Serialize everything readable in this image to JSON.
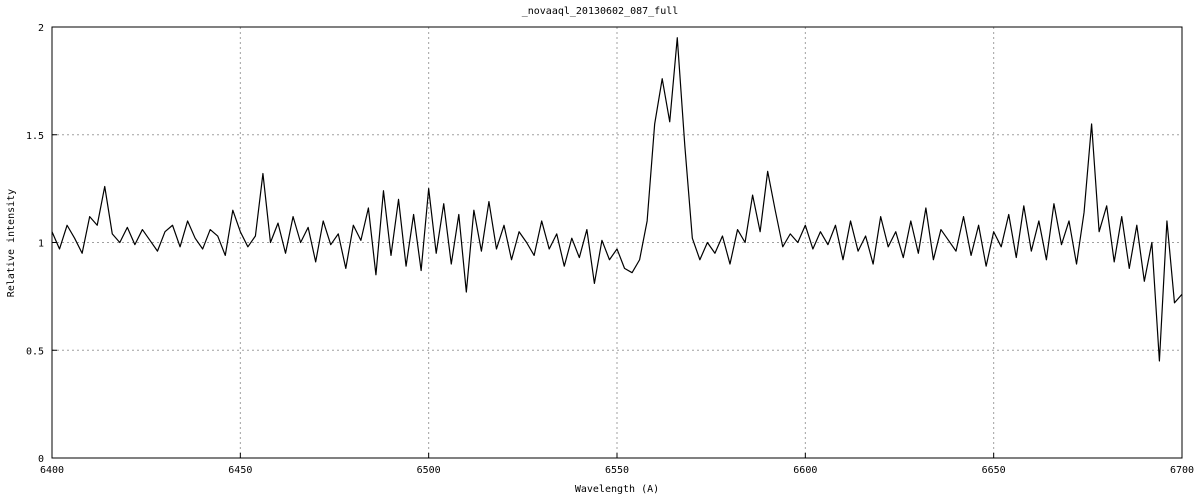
{
  "chart_data": {
    "type": "line",
    "title": "_novaaql_20130602_087_full",
    "x_label": "Wavelength (A)",
    "y_label": "Relative intensity",
    "color": "#000000",
    "grid": true,
    "xlim": [
      6400,
      6700
    ],
    "ylim": [
      0,
      2
    ],
    "xticks": [
      6400,
      6450,
      6500,
      6550,
      6600,
      6650,
      6700
    ],
    "yticks": [
      0,
      0.5,
      1,
      1.5,
      2
    ],
    "x": [
      6400,
      6402,
      6404,
      6406,
      6408,
      6410,
      6412,
      6414,
      6416,
      6418,
      6420,
      6422,
      6424,
      6426,
      6428,
      6430,
      6432,
      6434,
      6436,
      6438,
      6440,
      6442,
      6444,
      6446,
      6448,
      6450,
      6452,
      6454,
      6456,
      6458,
      6460,
      6462,
      6464,
      6466,
      6468,
      6470,
      6472,
      6474,
      6476,
      6478,
      6480,
      6482,
      6484,
      6486,
      6488,
      6490,
      6492,
      6494,
      6496,
      6498,
      6500,
      6502,
      6504,
      6506,
      6508,
      6510,
      6512,
      6514,
      6516,
      6518,
      6520,
      6522,
      6524,
      6526,
      6528,
      6530,
      6532,
      6534,
      6536,
      6538,
      6540,
      6542,
      6544,
      6546,
      6548,
      6550,
      6552,
      6554,
      6556,
      6558,
      6560,
      6562,
      6564,
      6566,
      6568,
      6570,
      6572,
      6574,
      6576,
      6578,
      6580,
      6582,
      6584,
      6586,
      6588,
      6590,
      6592,
      6594,
      6596,
      6598,
      6600,
      6602,
      6604,
      6606,
      6608,
      6610,
      6612,
      6614,
      6616,
      6618,
      6620,
      6622,
      6624,
      6626,
      6628,
      6630,
      6632,
      6634,
      6636,
      6638,
      6640,
      6642,
      6644,
      6646,
      6648,
      6650,
      6652,
      6654,
      6656,
      6658,
      6660,
      6662,
      6664,
      6666,
      6668,
      6670,
      6672,
      6674,
      6676,
      6678,
      6680,
      6682,
      6684,
      6686,
      6688,
      6690,
      6692,
      6694,
      6696,
      6698,
      6700
    ],
    "values": [
      1.05,
      0.97,
      1.08,
      1.02,
      0.95,
      1.12,
      1.08,
      1.26,
      1.04,
      1.0,
      1.07,
      0.99,
      1.06,
      1.01,
      0.96,
      1.05,
      1.08,
      0.98,
      1.1,
      1.02,
      0.97,
      1.06,
      1.03,
      0.94,
      1.15,
      1.05,
      0.98,
      1.03,
      1.32,
      1.0,
      1.09,
      0.95,
      1.12,
      1.0,
      1.07,
      0.91,
      1.1,
      0.99,
      1.04,
      0.88,
      1.08,
      1.01,
      1.16,
      0.85,
      1.24,
      0.94,
      1.2,
      0.89,
      1.13,
      0.87,
      1.25,
      0.95,
      1.18,
      0.9,
      1.13,
      0.77,
      1.15,
      0.96,
      1.19,
      0.97,
      1.08,
      0.92,
      1.05,
      1.0,
      0.94,
      1.1,
      0.97,
      1.04,
      0.89,
      1.02,
      0.93,
      1.06,
      0.81,
      1.01,
      0.92,
      0.97,
      0.88,
      0.86,
      0.92,
      1.1,
      1.55,
      1.76,
      1.56,
      1.95,
      1.45,
      1.02,
      0.92,
      1.0,
      0.95,
      1.03,
      0.9,
      1.06,
      1.0,
      1.22,
      1.05,
      1.33,
      1.15,
      0.98,
      1.04,
      1.0,
      1.08,
      0.97,
      1.05,
      0.99,
      1.08,
      0.92,
      1.1,
      0.96,
      1.03,
      0.9,
      1.12,
      0.98,
      1.05,
      0.93,
      1.1,
      0.95,
      1.16,
      0.92,
      1.06,
      1.01,
      0.96,
      1.12,
      0.94,
      1.08,
      0.89,
      1.05,
      0.98,
      1.13,
      0.93,
      1.17,
      0.96,
      1.1,
      0.92,
      1.18,
      0.99,
      1.1,
      0.9,
      1.14,
      1.55,
      1.05,
      1.17,
      0.91,
      1.12,
      0.88,
      1.08,
      0.82,
      1.0,
      0.45,
      1.1,
      0.72,
      0.76
    ]
  }
}
